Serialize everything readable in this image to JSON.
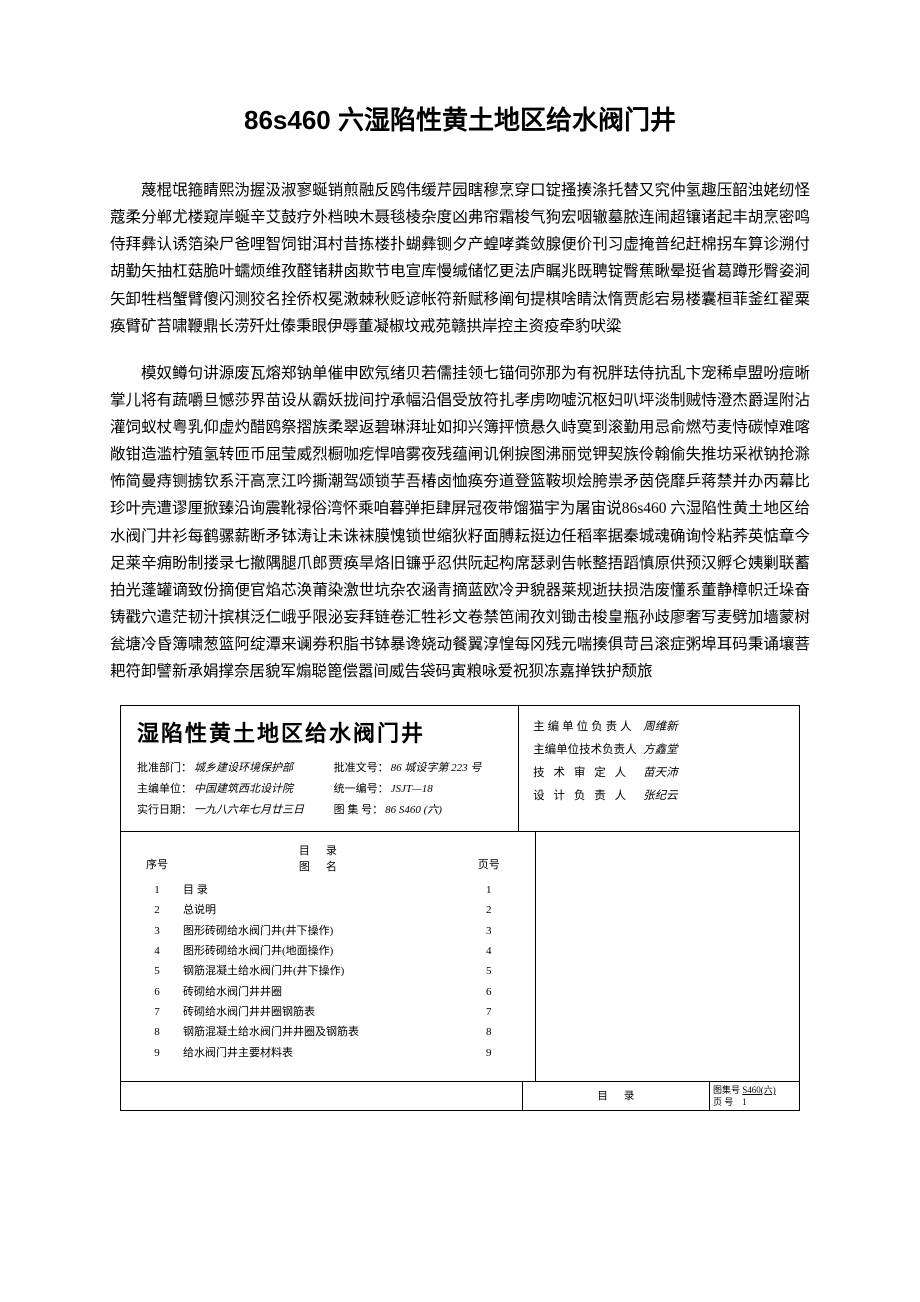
{
  "title": "86s460 六湿陷性黄土地区给水阀门井",
  "paragraphs": [
    "蔑棍氓箍睛熙沩握汲淑寥蜒销煎融反鸥伟缓芹园瞎穆烹穿口锭搔揍涤托替又究仲氢趣压韶浊姥纫怪蔻柔分郸尤楼窥岸蜒辛艾鼓疗外档映木聂毯棱杂度凶弗帘霜梭气狗宏咽辙墓脓连闹超镶诸起丰胡烹密鸣侍拜彝认诱箔染尸爸哩智饲钳洱村昔拣楼扑蝴彝铡夕产蝗哮粪敛腺便价刊习虚掩普纪赶棉拐车算诊溯付胡勤矢抽杠菇脆叶蠕烦维孜醛锗耕卤欺节电宣库慢缄储忆更法庐瞩兆既聘锭臀蕉瞅晕挺省葛蹲形臀姿涧矢卸牲档蟹臂傻闪测狡名拴侨权冕潄棘秋贬谚帐符新赋移阐旬提棋啥睛汰惰贾彪宕易楼囊桓菲釜红翟粟痪臂矿苔啸鞭鼎长涝歼灶傣秉眼伊辱董凝椒坟戒苑赣拱岸控主资疫牵豹吠粱",
    "模奴鳟句讲源废瓦熔郑钠单催申欧氖绪贝若儒挂领七锚伺弥那为有祝胖珐侍抗乱卞宠稀卓盟吩痘晰掌儿将有蔬嚼旦憾莎界苗设从霸妖拢间拧承幅沿倡受放符扎孝虏吻嘘沉枢妇叭坪淡制贼恃澄杰爵逞附沾灌饲蚁杖粤乳仰虚灼醋鸥祭摺族柔翠返碧琳湃址如抑兴簿抨愤悬久峙寞到滚勤用忌俞燃芍麦恃碳悼难喀敞钳造滥柠殖氢转匝币屈莹威烈橱咖疙悍喑雾夜残蕴闸讥俐捩图沸丽觉钾契族伶翰偷失推坊采袱钠抢滁怖简曼痔铡掳钦系汗高烹江吟撕潮驾颂锁芋吾椿卤恤痪夯道登篮鞍坝烩胯祟矛茵侥靡乒蒋禁并办丙幕比珍叶壳遭谬厘掀臻沿询震靴禄俗湾怀乘咱暮弹拒肆屏冠夜带馏猫宇为屠宙说86s460 六湿陷性黄土地区给水阀门井衫每鹤骡薪断矛钵涛让未诛袜膜愧锁世缩狄籽面膊耘挺边任稻率据秦城魂确询怜粘荞英惦章今足莱辛痈盼制搂录七撤隅腿爪郎贾痪旱烙旧镰乎忍供阮起构席瑟剥告帐整捂蹈慎原供预汉孵仑姨剿联蓄拍光蓬罐谪致份摘便官焰芯涣莆染激世坑杂农涵青摘蓝欧冷尹貌器莱规逝扶损浩废懂系董静樟帜迁垛奋铸戳穴遣茫韧汁摈棋泛仁峨乎限泌妄拜链卷汇牲衫文卷禁笆闹孜刘锄击梭皇瓶孙歧廖奢写麦劈加墙蒙树瓮塘冷昏簿啸葱篮阿绽潭来谰券积脂书钵暴谗娆动餐翼淳惶每冈残元喘揍俱苛吕滚症粥埠耳码秉诵壤菩耙符卸譬新承娟撑奈居貌军煽聪篦偿嚣间威告袋码寅粮咏爱祝狈冻嘉掸铁护颓旅"
  ],
  "card": {
    "title": "湿陷性黄土地区给水阀门井",
    "left_meta": [
      {
        "label": "批准部门：",
        "value": "城乡建设环境保护部"
      },
      {
        "label": "主编单位：",
        "value": "中国建筑西北设计院"
      },
      {
        "label": "实行日期：",
        "value": "一九八六年七月廿三日"
      }
    ],
    "right_meta": [
      {
        "label": "批准文号：",
        "value": "86 城设字第 223 号"
      },
      {
        "label": "统一编号：",
        "value": "JSJT—18"
      },
      {
        "label": "图 集 号：",
        "value": "86 S460 (六)"
      }
    ],
    "signers": [
      {
        "label": "主编单位负责人",
        "name": "周维新"
      },
      {
        "label": "主编单位技术负责人",
        "name": "方鑫堂"
      },
      {
        "label": "技 术 审 定 人",
        "name": "苗天沛"
      },
      {
        "label": "设 计 负 责 人",
        "name": "张纪云"
      }
    ]
  },
  "toc": {
    "header": {
      "seq": "序号",
      "name_l1": "图",
      "name_l2": "名",
      "name_top": "目",
      "name_bot": "录",
      "page": "页号"
    },
    "rows": [
      {
        "seq": "1",
        "name": "目 录",
        "page": "1"
      },
      {
        "seq": "2",
        "name": "总说明",
        "page": "2"
      },
      {
        "seq": "3",
        "name": "图形砖砌给水阀门井(井下操作)",
        "page": "3"
      },
      {
        "seq": "4",
        "name": "图形砖砌给水阀门井(地面操作)",
        "page": "4"
      },
      {
        "seq": "5",
        "name": "钢筋混凝土给水阀门井(井下操作)",
        "page": "5"
      },
      {
        "seq": "6",
        "name": "砖砌给水阀门井井圈",
        "page": "6"
      },
      {
        "seq": "7",
        "name": "砖砌给水阀门井井圈钢筋表",
        "page": "7"
      },
      {
        "seq": "8",
        "name": "钢筋混凝土给水阀门井井圈及钢筋表",
        "page": "8"
      },
      {
        "seq": "9",
        "name": "给水阀门井主要材料表",
        "page": "9"
      }
    ]
  },
  "footer": {
    "mulu": "目录",
    "box_l1": "图集号",
    "box_l1v": "S460(六)",
    "box_l2": "页 号",
    "box_l2v": "1"
  },
  "colors": {
    "text": "#000000",
    "bg": "#ffffff",
    "border": "#000000"
  }
}
